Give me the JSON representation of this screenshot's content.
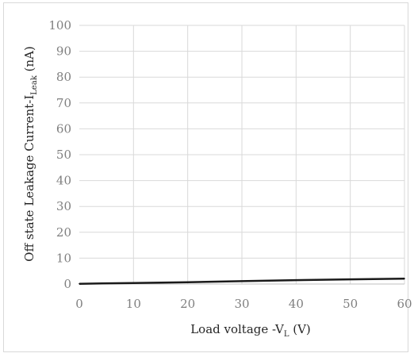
{
  "chart_data": {
    "type": "line",
    "xlabel": "Load voltage -V",
    "xlabel_sub": "L",
    "xlabel_unit": " (V)",
    "ylabel": "Off state Leakage Current-I",
    "ylabel_sub": "Leak",
    "ylabel_unit": " (nA)",
    "xlim": [
      0,
      60
    ],
    "ylim": [
      0,
      100
    ],
    "x_ticks": [
      0,
      10,
      20,
      30,
      40,
      50,
      60
    ],
    "y_ticks": [
      0,
      10,
      20,
      30,
      40,
      50,
      60,
      70,
      80,
      90,
      100
    ],
    "grid": true,
    "legend": "none",
    "series": [
      {
        "color": "#1a1a1a",
        "x": [
          0,
          10,
          20,
          30,
          40,
          50,
          60
        ],
        "y": [
          0.1,
          0.4,
          0.7,
          1.1,
          1.5,
          1.8,
          2.1
        ]
      }
    ]
  }
}
